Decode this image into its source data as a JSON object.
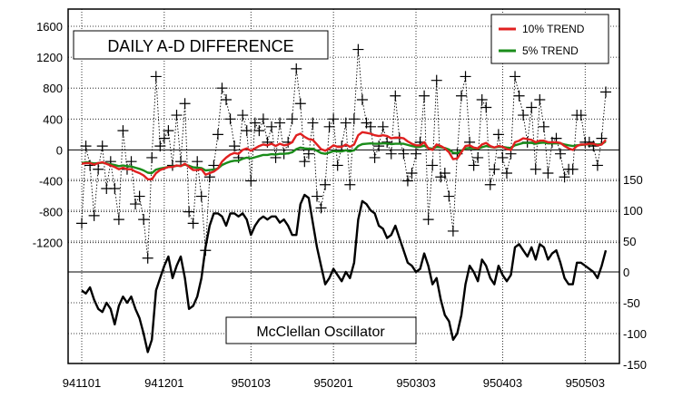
{
  "chart_data": [
    {
      "type": "line",
      "title": "DAILY A-D DIFFERENCE",
      "xlabel": "",
      "ylabel": "",
      "x_ticks": [
        "941101",
        "941201",
        "950103",
        "950201",
        "950303",
        "950403",
        "950503"
      ],
      "x_tick_index": [
        0,
        20,
        41,
        61,
        81,
        102,
        122
      ],
      "ylim": [
        -1600,
        1600
      ],
      "y_ticks": [
        1600,
        1200,
        800,
        400,
        0,
        -400,
        -800,
        -1200
      ],
      "grid": true,
      "legend_position": "top-right",
      "series": [
        {
          "name": "",
          "color": "#000000",
          "style": "dotted-with-cross-markers",
          "values": [
            -950,
            50,
            -200,
            -850,
            -250,
            50,
            -500,
            -150,
            -500,
            -900,
            250,
            -250,
            -150,
            -700,
            -600,
            -900,
            -1400,
            -100,
            950,
            50,
            150,
            250,
            -200,
            450,
            -150,
            600,
            -800,
            -950,
            -150,
            -600,
            -1300,
            -350,
            -200,
            200,
            800,
            650,
            400,
            50,
            -100,
            450,
            250,
            -400,
            350,
            250,
            400,
            100,
            300,
            -100,
            350,
            -50,
            100,
            400,
            1050,
            600,
            -150,
            -50,
            350,
            -600,
            -750,
            -450,
            300,
            400,
            -200,
            50,
            350,
            -450,
            400,
            1300,
            650,
            350,
            300,
            -100,
            50,
            300,
            100,
            -50,
            700,
            150,
            -50,
            -400,
            -300,
            -50,
            100,
            700,
            -900,
            -200,
            900,
            -350,
            -300,
            -600,
            -1050,
            -50,
            700,
            950,
            100,
            -200,
            -100,
            650,
            550,
            -450,
            -250,
            200,
            -100,
            -300,
            -50,
            950,
            700,
            450,
            100,
            550,
            -250,
            650,
            300,
            -300,
            100,
            150,
            -50,
            -350,
            -250,
            -250,
            450,
            450,
            100,
            100,
            50,
            -200,
            150,
            750
          ]
        },
        {
          "name": "10% TREND",
          "color": "#e02020",
          "values": [
            -180,
            -170,
            -170,
            -190,
            -170,
            -160,
            -180,
            -200,
            -220,
            -250,
            -230,
            -250,
            -250,
            -280,
            -300,
            -330,
            -380,
            -380,
            -300,
            -260,
            -240,
            -220,
            -220,
            -200,
            -210,
            -180,
            -220,
            -260,
            -260,
            -250,
            -320,
            -300,
            -280,
            -240,
            -150,
            -100,
            -60,
            -40,
            -50,
            0,
            20,
            -10,
            20,
            50,
            70,
            60,
            80,
            50,
            80,
            60,
            70,
            100,
            190,
            210,
            170,
            140,
            130,
            70,
            10,
            -10,
            20,
            60,
            40,
            40,
            70,
            40,
            70,
            190,
            230,
            220,
            210,
            190,
            180,
            190,
            180,
            150,
            160,
            160,
            150,
            110,
            80,
            60,
            60,
            100,
            20,
            0,
            70,
            50,
            20,
            -30,
            -120,
            -110,
            -30,
            50,
            60,
            30,
            20,
            70,
            90,
            50,
            30,
            50,
            40,
            10,
            0,
            100,
            120,
            150,
            140,
            130,
            100,
            120,
            120,
            100,
            100,
            100,
            90,
            50,
            20,
            0,
            50,
            70,
            70,
            80,
            80,
            60,
            70,
            130
          ]
        },
        {
          "name": "5% TREND",
          "color": "#1a8c1a",
          "values": [
            -170,
            -160,
            -165,
            -175,
            -170,
            -165,
            -175,
            -185,
            -195,
            -210,
            -200,
            -210,
            -215,
            -230,
            -245,
            -265,
            -295,
            -300,
            -255,
            -240,
            -230,
            -220,
            -215,
            -205,
            -205,
            -190,
            -205,
            -225,
            -230,
            -235,
            -265,
            -260,
            -255,
            -240,
            -195,
            -170,
            -150,
            -140,
            -140,
            -115,
            -100,
            -110,
            -95,
            -80,
            -65,
            -65,
            -55,
            -60,
            -50,
            -50,
            -45,
            -30,
            10,
            30,
            20,
            15,
            15,
            -10,
            -40,
            -50,
            -35,
            -15,
            -20,
            -20,
            -5,
            -20,
            -5,
            50,
            75,
            80,
            85,
            80,
            80,
            85,
            85,
            75,
            80,
            80,
            80,
            65,
            50,
            40,
            40,
            55,
            25,
            15,
            40,
            35,
            25,
            5,
            -35,
            -40,
            -10,
            20,
            25,
            20,
            15,
            35,
            50,
            40,
            30,
            40,
            40,
            30,
            25,
            60,
            75,
            90,
            90,
            90,
            80,
            90,
            95,
            85,
            85,
            85,
            85,
            70,
            60,
            50,
            60,
            65,
            70,
            75,
            75,
            70,
            75,
            110
          ]
        }
      ]
    },
    {
      "type": "line",
      "title": "McClellan Oscillator",
      "ylim": [
        -150,
        200
      ],
      "y_ticks": [
        150,
        100,
        50,
        0,
        -50,
        -100,
        -150
      ],
      "grid": true,
      "series": [
        {
          "name": "",
          "color": "#000000",
          "values": [
            -30,
            -35,
            -25,
            -45,
            -60,
            -65,
            -50,
            -60,
            -85,
            -55,
            -40,
            -50,
            -40,
            -60,
            -75,
            -100,
            -130,
            -110,
            -30,
            -10,
            10,
            25,
            -10,
            10,
            25,
            -10,
            -60,
            -55,
            -40,
            -10,
            40,
            75,
            95,
            95,
            90,
            75,
            95,
            95,
            90,
            95,
            85,
            60,
            75,
            85,
            90,
            85,
            90,
            90,
            80,
            85,
            75,
            60,
            60,
            110,
            125,
            120,
            80,
            40,
            10,
            -20,
            -10,
            5,
            -5,
            -15,
            0,
            -10,
            15,
            85,
            115,
            110,
            100,
            95,
            75,
            70,
            55,
            60,
            75,
            55,
            35,
            15,
            10,
            0,
            5,
            30,
            10,
            -20,
            -10,
            -45,
            -70,
            -80,
            -110,
            -100,
            -70,
            -20,
            10,
            0,
            -15,
            20,
            10,
            -10,
            -20,
            10,
            -5,
            -15,
            -5,
            40,
            45,
            35,
            25,
            40,
            20,
            45,
            40,
            20,
            30,
            35,
            15,
            -10,
            -20,
            -20,
            15,
            15,
            10,
            5,
            0,
            -10,
            10,
            35
          ]
        }
      ]
    }
  ]
}
